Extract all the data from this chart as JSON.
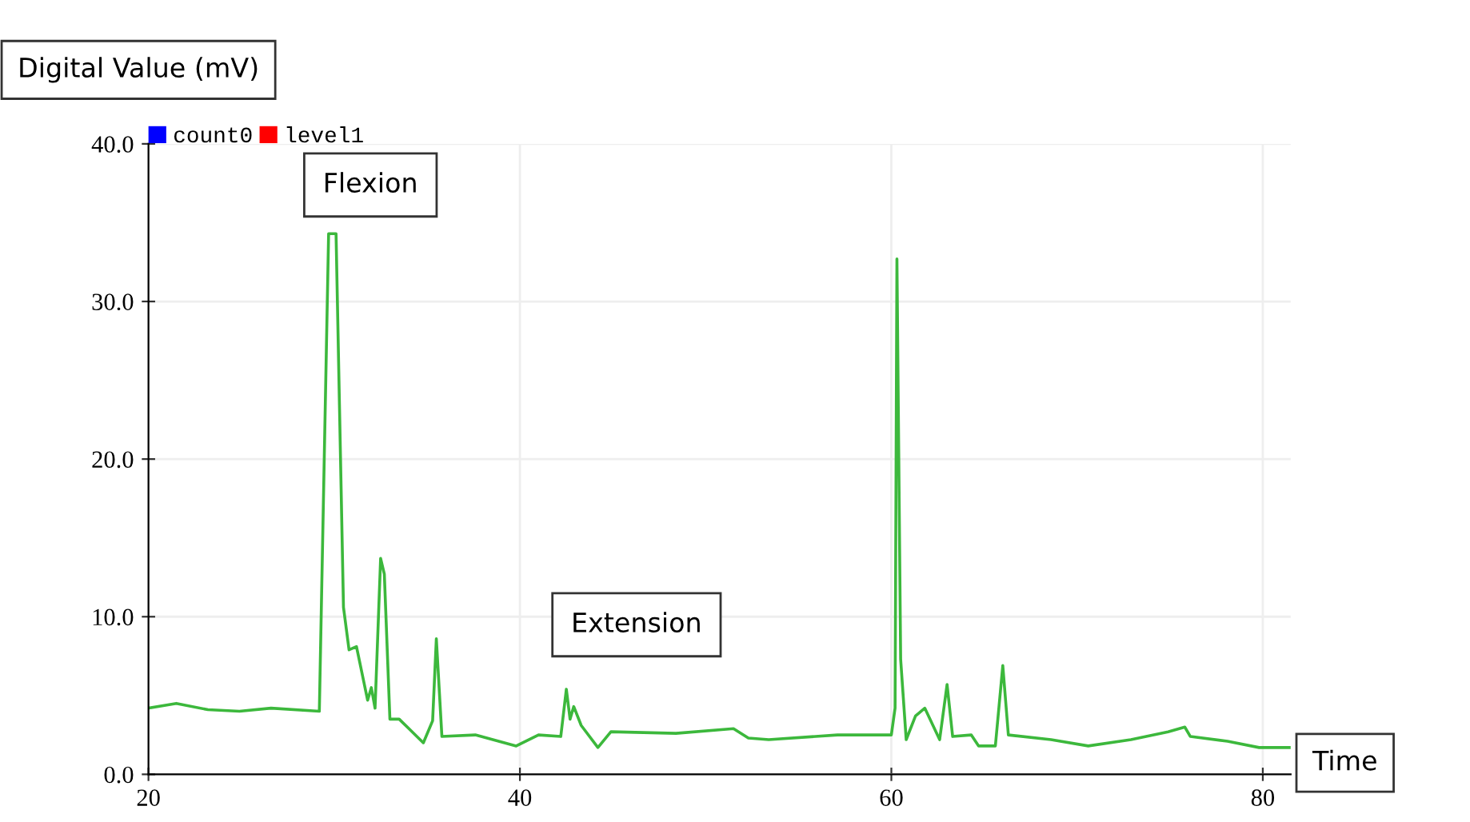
{
  "chart_data": {
    "type": "line",
    "xlabel": "Time",
    "ylabel": "Digital Value (mV)",
    "annotations": [
      "Flexion",
      "Extension"
    ],
    "xlim": [
      20,
      81.5
    ],
    "xticks": [
      20,
      40,
      60,
      80
    ],
    "ylim": [
      0,
      40
    ],
    "yticks": [
      {
        "value": 0,
        "label": "0.0"
      },
      {
        "value": 10,
        "label": "10.0"
      },
      {
        "value": 20,
        "label": "20.0"
      },
      {
        "value": 30,
        "label": "30.0"
      },
      {
        "value": 40,
        "label": "40.0"
      }
    ],
    "grid": true,
    "legend": "top left",
    "marker": "none",
    "line_style": "solid",
    "series": [
      {
        "name": "count0",
        "color": "#0000ff"
      },
      {
        "name": "level1",
        "color": "#ff0000"
      },
      {
        "color": "#3cb83c",
        "x": [
          20,
          21.5,
          23.2,
          24.9,
          26.6,
          29.2,
          29.7,
          30.1,
          30.5,
          30.8,
          31.2,
          31.8,
          32.0,
          32.2,
          32.5,
          32.7,
          33.0,
          33.5,
          34.8,
          35.3,
          35.5,
          35.8,
          37.6,
          39.8,
          41.0,
          42.2,
          42.5,
          42.7,
          42.9,
          43.3,
          44.2,
          44.9,
          48.4,
          51.5,
          52.3,
          53.4,
          57.1,
          60.0,
          60.2,
          60.3,
          60.5,
          60.8,
          61.3,
          61.8,
          62.6,
          63.0,
          63.3,
          64.3,
          64.7,
          65.6,
          66.0,
          66.3,
          68.6,
          70.6,
          72.9,
          74.9,
          75.8,
          76.1,
          78.1,
          79.8,
          81.5
        ],
        "values": [
          4.2,
          4.5,
          4.1,
          4.0,
          4.2,
          4.0,
          34.3,
          34.3,
          10.6,
          7.9,
          8.1,
          4.7,
          5.5,
          4.2,
          13.7,
          12.7,
          3.5,
          3.5,
          2.0,
          3.4,
          8.6,
          2.4,
          2.5,
          1.8,
          2.5,
          2.4,
          5.4,
          3.5,
          4.3,
          3.1,
          1.7,
          2.7,
          2.6,
          2.9,
          2.3,
          2.2,
          2.5,
          2.5,
          4.2,
          32.7,
          7.3,
          2.2,
          3.7,
          4.2,
          2.2,
          5.7,
          2.4,
          2.5,
          1.8,
          1.8,
          6.9,
          2.5,
          2.2,
          1.8,
          2.2,
          2.7,
          3.0,
          2.4,
          2.1,
          1.7,
          1.7
        ]
      }
    ]
  }
}
